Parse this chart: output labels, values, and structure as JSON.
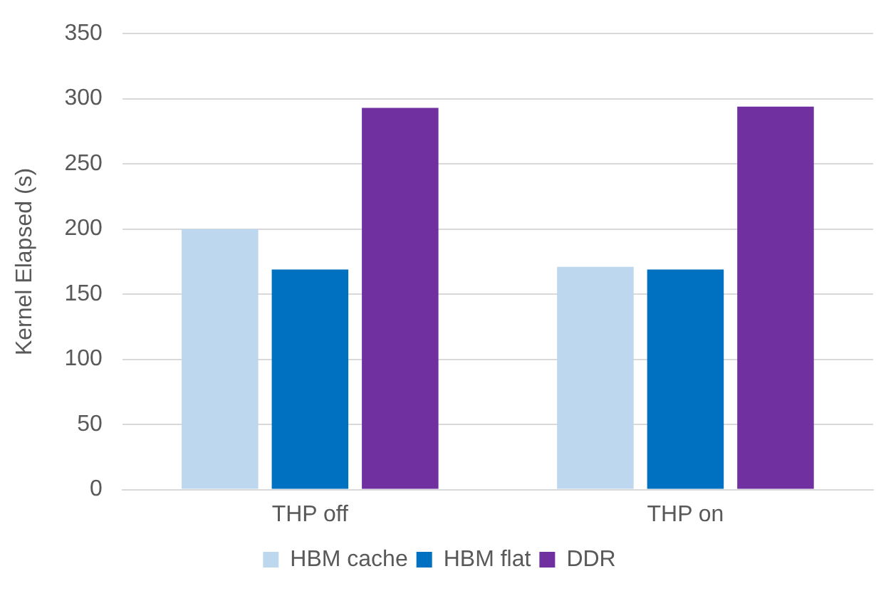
{
  "chart_data": {
    "type": "bar",
    "ylabel": "Kernel Elapsed (s)",
    "categories": [
      "THP off",
      "THP on"
    ],
    "series": [
      {
        "name": "HBM cache",
        "color": "#bdd7ee",
        "values": [
          200,
          171
        ]
      },
      {
        "name": "HBM flat",
        "color": "#0070c0",
        "values": [
          169,
          169
        ]
      },
      {
        "name": "DDR",
        "color": "#7030a0",
        "values": [
          293,
          294
        ]
      }
    ],
    "ylim": [
      0,
      350
    ],
    "yticks": [
      0,
      50,
      100,
      150,
      200,
      250,
      300,
      350
    ],
    "grid": "y",
    "legend": "bottom"
  }
}
